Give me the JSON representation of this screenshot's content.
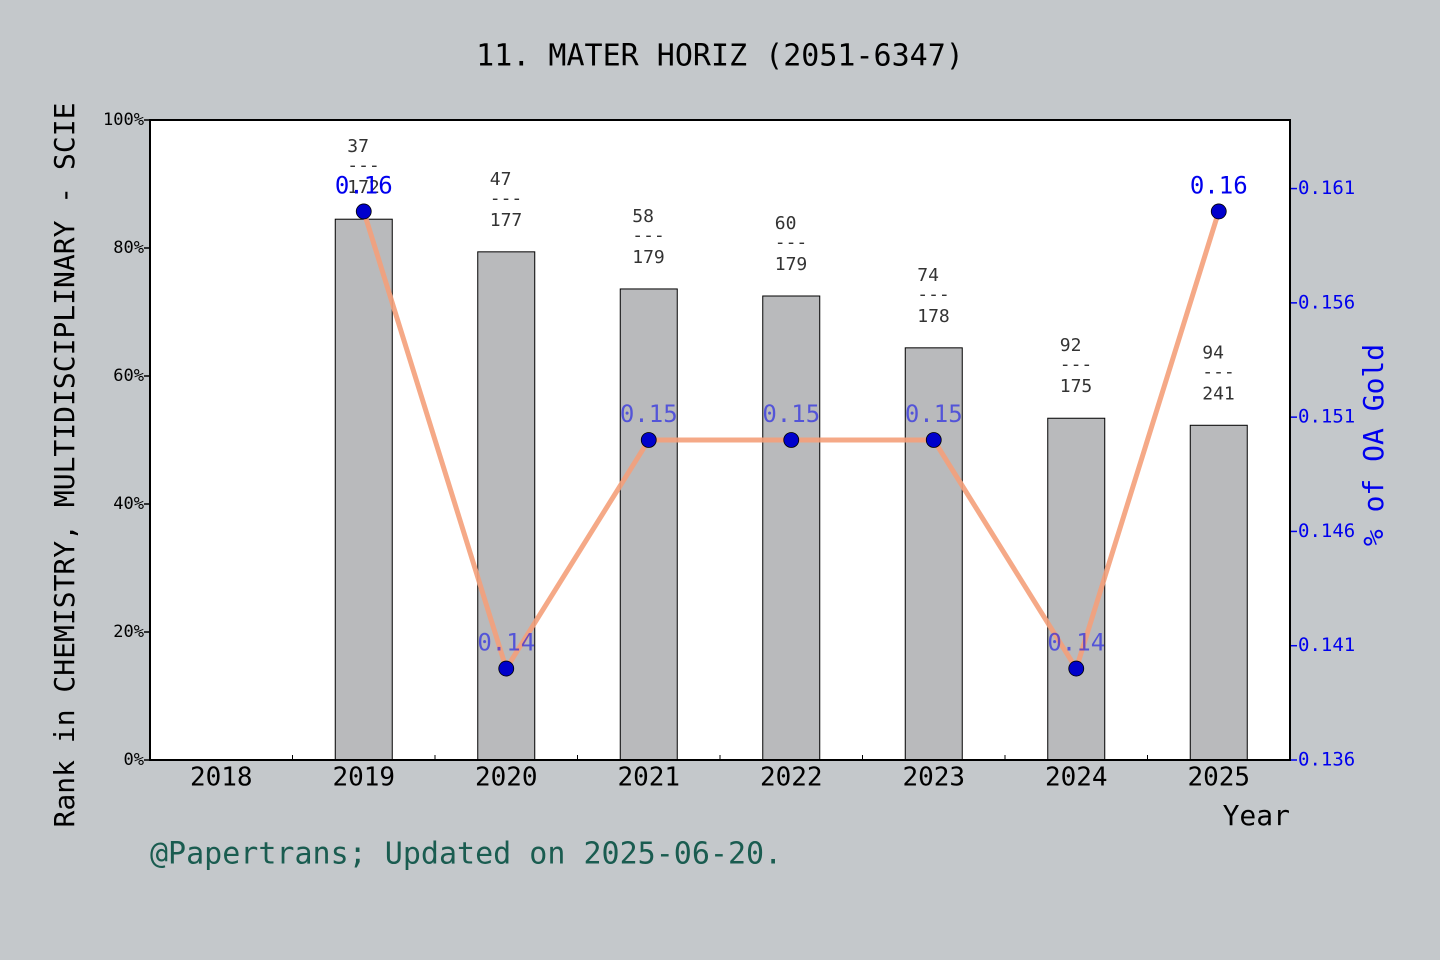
{
  "chart_data": {
    "type": "bar_line",
    "title": "11. MATER HORIZ (2051-6347)",
    "y_label": "Rank in CHEMISTRY, MULTIDISCIPLINARY - SCIE",
    "y2_label": "% of OA Gold",
    "x_label": "Year",
    "footnote": "@Papertrans; Updated on 2025-06-20.",
    "categories": [
      "2018",
      "2019",
      "2020",
      "2021",
      "2022",
      "2023",
      "2024",
      "2025"
    ],
    "series": [
      {
        "type": "bar",
        "color": "#b9babc",
        "values": [
          null,
          84.5,
          79.4,
          73.6,
          72.5,
          64.4,
          53.4,
          52.3
        ],
        "annotations": [
          null,
          [
            "37",
            "---",
            "172"
          ],
          [
            "47",
            "---",
            "177"
          ],
          [
            "58",
            "---",
            "179"
          ],
          [
            "60",
            "---",
            "179"
          ],
          [
            "74",
            "---",
            "178"
          ],
          [
            "92",
            "---",
            "175"
          ],
          [
            "94",
            "---",
            "241"
          ]
        ]
      },
      {
        "type": "line",
        "axis": "y2",
        "color": "#f4a07a",
        "marker_color": "#0000cc",
        "values": [
          null,
          0.16,
          0.14,
          0.15,
          0.15,
          0.15,
          0.14,
          0.16
        ]
      }
    ],
    "ylim": [
      0,
      100
    ],
    "yticks": [
      {
        "value": 0,
        "label": "0%"
      },
      {
        "value": 20,
        "label": "20%"
      },
      {
        "value": 40,
        "label": "40%"
      },
      {
        "value": 60,
        "label": "60%"
      },
      {
        "value": 80,
        "label": "80%"
      },
      {
        "value": 100,
        "label": "100%"
      }
    ],
    "y2lim": [
      0.136,
      0.164
    ],
    "y2ticks": [
      0.136,
      0.141,
      0.146,
      0.151,
      0.156,
      0.161
    ]
  }
}
